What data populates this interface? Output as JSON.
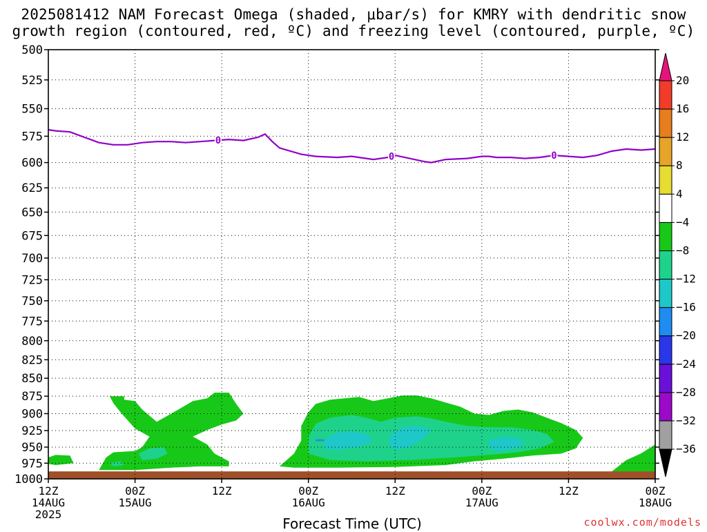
{
  "chart_data": {
    "type": "heatmap",
    "title_line1": "2025081412 NAM Forecast Omega (shaded, μbar/s) for KMRY with dendritic snow",
    "title_line2": "growth region (contoured, red, ºC) and freezing level (contoured, purple, ºC)",
    "xlabel": "Forecast Time (UTC)",
    "credit": "coolwx.com/models",
    "y_axis": {
      "label": "",
      "scale": "log-pressure",
      "inverted": true,
      "ylim": [
        1000,
        500
      ],
      "ticks": [
        500,
        525,
        550,
        575,
        600,
        625,
        650,
        675,
        700,
        725,
        750,
        775,
        800,
        825,
        850,
        875,
        900,
        925,
        950,
        975,
        1000
      ]
    },
    "x_axis": {
      "range_hours": [
        0,
        84
      ],
      "ticks": [
        {
          "hour": 0,
          "lines": [
            "12Z",
            "14AUG",
            "2025"
          ]
        },
        {
          "hour": 12,
          "lines": [
            "00Z",
            "15AUG"
          ]
        },
        {
          "hour": 24,
          "lines": [
            "12Z"
          ]
        },
        {
          "hour": 36,
          "lines": [
            "00Z",
            "16AUG"
          ]
        },
        {
          "hour": 48,
          "lines": [
            "12Z"
          ]
        },
        {
          "hour": 60,
          "lines": [
            "00Z",
            "17AUG"
          ]
        },
        {
          "hour": 72,
          "lines": [
            "12Z"
          ]
        },
        {
          "hour": 84,
          "lines": [
            "00Z",
            "18AUG"
          ]
        }
      ],
      "grid": true
    },
    "colorbar": {
      "levels": [
        -36,
        -32,
        -28,
        -24,
        -20,
        -16,
        -12,
        -8,
        -4,
        4,
        8,
        12,
        16,
        20
      ],
      "colors": [
        "#000000",
        "#a0a0a0",
        "#9a0ac8",
        "#6a10d8",
        "#2a36e8",
        "#1e8cf0",
        "#1ec8c8",
        "#1ed28c",
        "#18c818",
        "#ffffff",
        "#e6dc32",
        "#e6a428",
        "#e67d1e",
        "#f03c28",
        "#e6147a"
      ]
    },
    "freezing_level": {
      "label": "0",
      "color": "#9000c8",
      "points": [
        [
          0,
          569
        ],
        [
          1,
          570
        ],
        [
          3,
          571
        ],
        [
          5,
          576
        ],
        [
          7,
          581
        ],
        [
          9,
          583
        ],
        [
          11,
          583
        ],
        [
          13,
          581
        ],
        [
          15,
          580
        ],
        [
          17,
          580
        ],
        [
          19,
          581
        ],
        [
          21,
          580
        ],
        [
          23,
          579
        ],
        [
          25,
          578
        ],
        [
          27,
          579
        ],
        [
          29,
          576
        ],
        [
          30,
          573
        ],
        [
          31,
          580
        ],
        [
          32,
          586
        ],
        [
          35,
          592
        ],
        [
          37,
          594
        ],
        [
          40,
          595
        ],
        [
          42,
          594
        ],
        [
          44,
          596
        ],
        [
          45,
          597
        ],
        [
          47,
          595
        ],
        [
          48,
          593
        ],
        [
          50,
          596
        ],
        [
          52,
          599
        ],
        [
          53,
          600
        ],
        [
          55,
          597
        ],
        [
          58,
          596
        ],
        [
          60,
          594
        ],
        [
          61,
          594
        ],
        [
          62,
          595
        ],
        [
          64,
          595
        ],
        [
          66,
          596
        ],
        [
          68,
          595
        ],
        [
          70,
          593
        ],
        [
          72,
          594
        ],
        [
          74,
          595
        ],
        [
          76,
          593
        ],
        [
          78,
          589
        ],
        [
          80,
          587
        ],
        [
          82,
          588
        ],
        [
          84,
          587
        ]
      ],
      "label_hours": [
        23.5,
        47.5,
        70
      ]
    },
    "omega_regions": [
      {
        "level": -4,
        "color": "#18c818",
        "points": [
          [
            8.5,
            875
          ],
          [
            10.5,
            875
          ],
          [
            10.5,
            880
          ],
          [
            12,
            882
          ],
          [
            13,
            894
          ],
          [
            15,
            912
          ],
          [
            17,
            900
          ],
          [
            20,
            882
          ],
          [
            22,
            878
          ],
          [
            23,
            870
          ],
          [
            25,
            870
          ],
          [
            26,
            886
          ],
          [
            27,
            900
          ],
          [
            26,
            910
          ],
          [
            24,
            916
          ],
          [
            22,
            924
          ],
          [
            20,
            934
          ],
          [
            22,
            946
          ],
          [
            23,
            960
          ],
          [
            25,
            972
          ],
          [
            25,
            980
          ],
          [
            21,
            980
          ],
          [
            17,
            982
          ],
          [
            12,
            986
          ],
          [
            7,
            986
          ],
          [
            8,
            966
          ],
          [
            9,
            958
          ],
          [
            12,
            956
          ],
          [
            13,
            950
          ],
          [
            14,
            934
          ],
          [
            12,
            922
          ],
          [
            11,
            910
          ],
          [
            10,
            898
          ],
          [
            9,
            885
          ]
        ]
      },
      {
        "level": -4,
        "color": "#18c818",
        "points": [
          [
            0,
            966
          ],
          [
            1,
            962
          ],
          [
            3,
            963
          ],
          [
            3.5,
            975
          ],
          [
            1,
            978
          ],
          [
            0,
            976
          ]
        ]
      },
      {
        "level": -4,
        "color": "#18c818",
        "points": [
          [
            32,
            980
          ],
          [
            34,
            960
          ],
          [
            35,
            940
          ],
          [
            35,
            918
          ],
          [
            36,
            898
          ],
          [
            37,
            886
          ],
          [
            39,
            880
          ],
          [
            41,
            878
          ],
          [
            43,
            876
          ],
          [
            45,
            882
          ],
          [
            47,
            878
          ],
          [
            49,
            874
          ],
          [
            51,
            874
          ],
          [
            53,
            878
          ],
          [
            55,
            884
          ],
          [
            57,
            890
          ],
          [
            59,
            900
          ],
          [
            61,
            902
          ],
          [
            63,
            896
          ],
          [
            65,
            894
          ],
          [
            67,
            898
          ],
          [
            69,
            906
          ],
          [
            71,
            914
          ],
          [
            73,
            924
          ],
          [
            74,
            936
          ],
          [
            73,
            952
          ],
          [
            71,
            960
          ],
          [
            67,
            963
          ],
          [
            63,
            968
          ],
          [
            59,
            972
          ],
          [
            55,
            978
          ],
          [
            48,
            981
          ],
          [
            40,
            982
          ],
          [
            34,
            982
          ]
        ]
      },
      {
        "level": -4,
        "color": "#18c818",
        "points": [
          [
            78,
            988
          ],
          [
            80,
            970
          ],
          [
            82,
            960
          ],
          [
            84,
            946
          ],
          [
            84,
            990
          ],
          [
            78,
            990
          ]
        ]
      },
      {
        "level": -8,
        "color": "#1ed28c",
        "points": [
          [
            12.5,
            960
          ],
          [
            14,
            952
          ],
          [
            16,
            950
          ],
          [
            16.5,
            960
          ],
          [
            15,
            968
          ],
          [
            13,
            970
          ]
        ]
      },
      {
        "level": -8,
        "color": "#1ed28c",
        "points": [
          [
            8.5,
            975
          ],
          [
            10,
            972
          ],
          [
            10.5,
            978
          ],
          [
            9,
            980
          ]
        ]
      },
      {
        "level": -8,
        "color": "#1ed28c",
        "points": [
          [
            36,
            960
          ],
          [
            36,
            935
          ],
          [
            37,
            915
          ],
          [
            39,
            906
          ],
          [
            42,
            902
          ],
          [
            44,
            906
          ],
          [
            46,
            912
          ],
          [
            48,
            906
          ],
          [
            51,
            904
          ],
          [
            53,
            907
          ],
          [
            55,
            912
          ],
          [
            58,
            918
          ],
          [
            61,
            920
          ],
          [
            64,
            920
          ],
          [
            67,
            924
          ],
          [
            69,
            930
          ],
          [
            70,
            942
          ],
          [
            68,
            952
          ],
          [
            65,
            958
          ],
          [
            61,
            962
          ],
          [
            56,
            966
          ],
          [
            50,
            970
          ],
          [
            44,
            972
          ],
          [
            39,
            970
          ]
        ]
      },
      {
        "level": -12,
        "color": "#1ec8c8",
        "points": [
          [
            38,
            952
          ],
          [
            38.5,
            936
          ],
          [
            40,
            928
          ],
          [
            42,
            926
          ],
          [
            44,
            930
          ],
          [
            45,
            940
          ],
          [
            43,
            950
          ],
          [
            40,
            954
          ]
        ]
      },
      {
        "level": -12,
        "color": "#1ec8c8",
        "points": [
          [
            47,
            944
          ],
          [
            47.5,
            930
          ],
          [
            49,
            920
          ],
          [
            51,
            918
          ],
          [
            53,
            924
          ],
          [
            52,
            936
          ],
          [
            50,
            950
          ],
          [
            48,
            954
          ]
        ]
      },
      {
        "level": -12,
        "color": "#1ec8c8",
        "points": [
          [
            61,
            950
          ],
          [
            61,
            940
          ],
          [
            63,
            934
          ],
          [
            65,
            936
          ],
          [
            66,
            946
          ],
          [
            64,
            954
          ],
          [
            62,
            956
          ]
        ]
      },
      {
        "level": -16,
        "color": "#1e8cf0",
        "points": [
          [
            37,
            938
          ],
          [
            38.2,
            938
          ],
          [
            38.2,
            941
          ],
          [
            37,
            941
          ]
        ]
      }
    ],
    "ground": {
      "color": "#a05028",
      "pressure_top_approx": 988
    }
  }
}
